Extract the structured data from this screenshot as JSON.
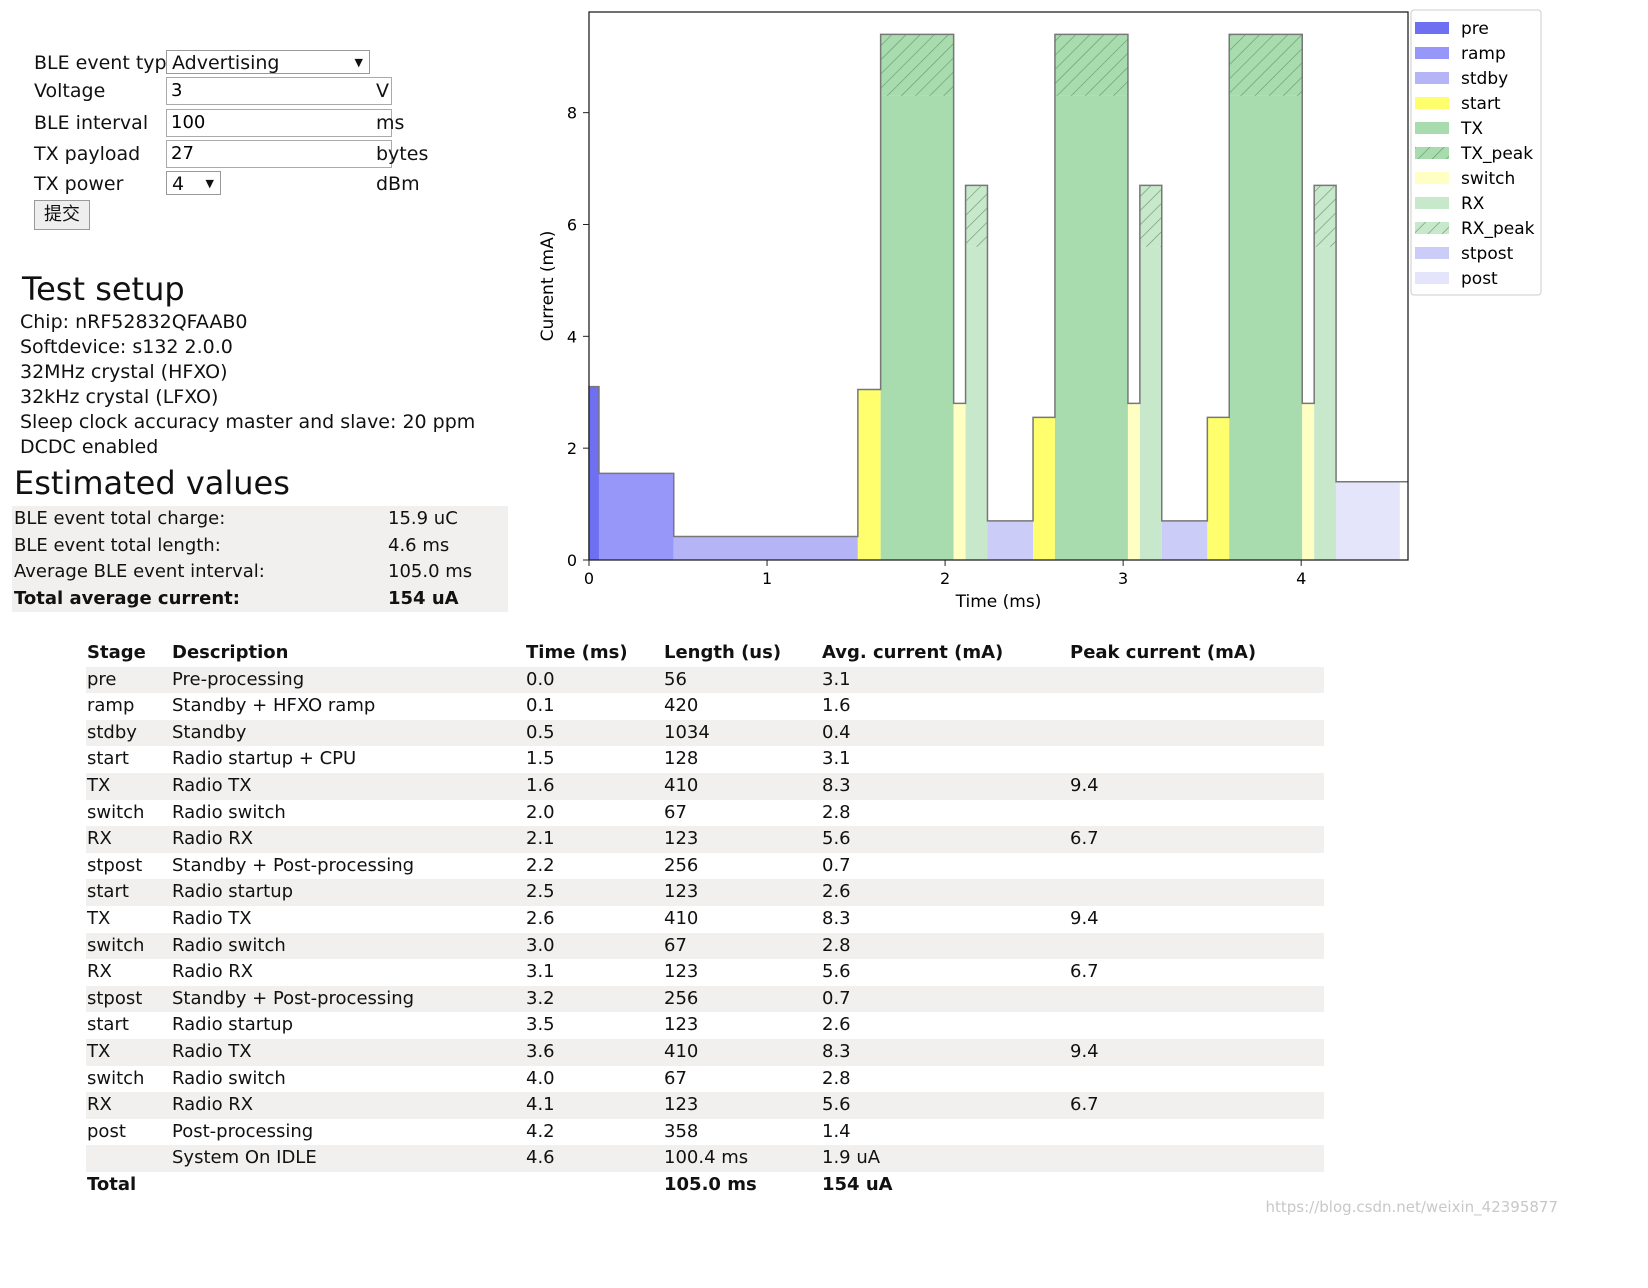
{
  "form": {
    "event_type_label": "BLE event type",
    "event_type_value": "Advertising",
    "voltage_label": "Voltage",
    "voltage_value": "3",
    "voltage_unit": "V",
    "interval_label": "BLE interval",
    "interval_value": "100",
    "interval_unit": "ms",
    "payload_label": "TX payload",
    "payload_value": "27",
    "payload_unit": "bytes",
    "power_label": "TX power",
    "power_value": "4",
    "power_unit": "dBm",
    "submit_label": "提交"
  },
  "setup": {
    "title": "Test setup",
    "lines": [
      "Chip: nRF52832QFAAB0",
      "Softdevice: s132 2.0.0",
      "32MHz crystal (HFXO)",
      "32kHz crystal (LFXO)",
      "Sleep clock accuracy master and slave: 20 ppm",
      "DCDC enabled"
    ]
  },
  "estimated": {
    "title": "Estimated values",
    "rows": [
      {
        "label": "BLE event total charge:",
        "value": "15.9 uC"
      },
      {
        "label": "BLE event total length:",
        "value": "4.6 ms"
      },
      {
        "label": "Average BLE event interval:",
        "value": "105.0 ms"
      },
      {
        "label": "Total average current:",
        "value": "154 uA"
      }
    ]
  },
  "table": {
    "headers": [
      "Stage",
      "Description",
      "Time (ms)",
      "Length (us)",
      "Avg. current (mA)",
      "Peak current (mA)"
    ],
    "rows": [
      [
        "pre",
        "Pre-processing",
        "0.0",
        "56",
        "3.1",
        ""
      ],
      [
        "ramp",
        "Standby + HFXO ramp",
        "0.1",
        "420",
        "1.6",
        ""
      ],
      [
        "stdby",
        "Standby",
        "0.5",
        "1034",
        "0.4",
        ""
      ],
      [
        "start",
        "Radio startup + CPU",
        "1.5",
        "128",
        "3.1",
        ""
      ],
      [
        "TX",
        "Radio TX",
        "1.6",
        "410",
        "8.3",
        "9.4"
      ],
      [
        "switch",
        "Radio switch",
        "2.0",
        "67",
        "2.8",
        ""
      ],
      [
        "RX",
        "Radio RX",
        "2.1",
        "123",
        "5.6",
        "6.7"
      ],
      [
        "stpost",
        "Standby + Post-processing",
        "2.2",
        "256",
        "0.7",
        ""
      ],
      [
        "start",
        "Radio startup",
        "2.5",
        "123",
        "2.6",
        ""
      ],
      [
        "TX",
        "Radio TX",
        "2.6",
        "410",
        "8.3",
        "9.4"
      ],
      [
        "switch",
        "Radio switch",
        "3.0",
        "67",
        "2.8",
        ""
      ],
      [
        "RX",
        "Radio RX",
        "3.1",
        "123",
        "5.6",
        "6.7"
      ],
      [
        "stpost",
        "Standby + Post-processing",
        "3.2",
        "256",
        "0.7",
        ""
      ],
      [
        "start",
        "Radio startup",
        "3.5",
        "123",
        "2.6",
        ""
      ],
      [
        "TX",
        "Radio TX",
        "3.6",
        "410",
        "8.3",
        "9.4"
      ],
      [
        "switch",
        "Radio switch",
        "4.0",
        "67",
        "2.8",
        ""
      ],
      [
        "RX",
        "Radio RX",
        "4.1",
        "123",
        "5.6",
        "6.7"
      ],
      [
        "post",
        "Post-processing",
        "4.2",
        "358",
        "1.4",
        ""
      ],
      [
        "",
        "System On IDLE",
        "4.6",
        "100.4 ms",
        "1.9 uA",
        ""
      ]
    ],
    "total": [
      "Total",
      "",
      "",
      "105.0 ms",
      "154 uA",
      ""
    ]
  },
  "chart_data": {
    "type": "bar",
    "xlabel": "Time (ms)",
    "ylabel": "Current (mA)",
    "xlim": [
      0,
      4.6
    ],
    "ylim": [
      0,
      9.8
    ],
    "xticks": [
      0,
      1,
      2,
      3,
      4
    ],
    "yticks": [
      0,
      2,
      4,
      6,
      8
    ],
    "grid": false,
    "legend_position": "top-right",
    "legend": [
      {
        "name": "pre",
        "color": "#6f6ff2",
        "hatch": false
      },
      {
        "name": "ramp",
        "color": "#9797fa",
        "hatch": false
      },
      {
        "name": "stdby",
        "color": "#b4b4f6",
        "hatch": false
      },
      {
        "name": "start",
        "color": "#ffff6e",
        "hatch": false
      },
      {
        "name": "TX",
        "color": "#a8dcae",
        "hatch": false
      },
      {
        "name": "TX_peak",
        "color": "#a8dcae",
        "hatch": true
      },
      {
        "name": "switch",
        "color": "#ffffc4",
        "hatch": false
      },
      {
        "name": "RX",
        "color": "#c8e8cc",
        "hatch": false
      },
      {
        "name": "RX_peak",
        "color": "#c8e8cc",
        "hatch": true
      },
      {
        "name": "stpost",
        "color": "#ccccf8",
        "hatch": false
      },
      {
        "name": "post",
        "color": "#e4e4fa",
        "hatch": false
      }
    ],
    "segments": [
      {
        "stage": "pre",
        "start_ms": 0.0,
        "length_us": 56,
        "avg_ma": 3.1,
        "peak_ma": null
      },
      {
        "stage": "ramp",
        "start_ms": 0.056,
        "length_us": 420,
        "avg_ma": 1.55,
        "peak_ma": null
      },
      {
        "stage": "stdby",
        "start_ms": 0.476,
        "length_us": 1034,
        "avg_ma": 0.42,
        "peak_ma": null
      },
      {
        "stage": "start",
        "start_ms": 1.51,
        "length_us": 128,
        "avg_ma": 3.05,
        "peak_ma": null
      },
      {
        "stage": "TX",
        "start_ms": 1.638,
        "length_us": 410,
        "avg_ma": 8.3,
        "peak_ma": 9.4
      },
      {
        "stage": "switch",
        "start_ms": 2.048,
        "length_us": 67,
        "avg_ma": 2.8,
        "peak_ma": null
      },
      {
        "stage": "RX",
        "start_ms": 2.115,
        "length_us": 123,
        "avg_ma": 5.6,
        "peak_ma": 6.7
      },
      {
        "stage": "stpost",
        "start_ms": 2.238,
        "length_us": 256,
        "avg_ma": 0.7,
        "peak_ma": null
      },
      {
        "stage": "start",
        "start_ms": 2.494,
        "length_us": 123,
        "avg_ma": 2.55,
        "peak_ma": null
      },
      {
        "stage": "TX",
        "start_ms": 2.617,
        "length_us": 410,
        "avg_ma": 8.3,
        "peak_ma": 9.4
      },
      {
        "stage": "switch",
        "start_ms": 3.027,
        "length_us": 67,
        "avg_ma": 2.8,
        "peak_ma": null
      },
      {
        "stage": "RX",
        "start_ms": 3.094,
        "length_us": 123,
        "avg_ma": 5.6,
        "peak_ma": 6.7
      },
      {
        "stage": "stpost",
        "start_ms": 3.217,
        "length_us": 256,
        "avg_ma": 0.7,
        "peak_ma": null
      },
      {
        "stage": "start",
        "start_ms": 3.473,
        "length_us": 123,
        "avg_ma": 2.55,
        "peak_ma": null
      },
      {
        "stage": "TX",
        "start_ms": 3.596,
        "length_us": 410,
        "avg_ma": 8.3,
        "peak_ma": 9.4
      },
      {
        "stage": "switch",
        "start_ms": 4.006,
        "length_us": 67,
        "avg_ma": 2.8,
        "peak_ma": null
      },
      {
        "stage": "RX",
        "start_ms": 4.073,
        "length_us": 123,
        "avg_ma": 5.6,
        "peak_ma": 6.7
      },
      {
        "stage": "post",
        "start_ms": 4.196,
        "length_us": 358,
        "avg_ma": 1.4,
        "peak_ma": null
      }
    ]
  },
  "watermark": "https://blog.csdn.net/weixin_42395877"
}
